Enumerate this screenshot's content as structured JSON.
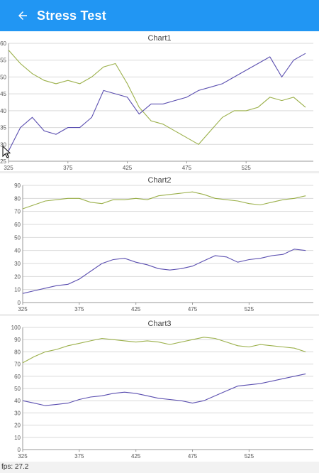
{
  "appbar": {
    "title": "Stress Test",
    "back_icon": "arrow-back-icon",
    "background": "#2196f3"
  },
  "status": {
    "fps_text": "fps: 27.2"
  },
  "colors": {
    "series_green": "#9bb04a",
    "series_purple": "#5b4fb0"
  },
  "chart_data": [
    {
      "type": "line",
      "title": "Chart1",
      "x_ticks": [
        325,
        375,
        425,
        475,
        525
      ],
      "y_ticks": [
        25,
        30,
        35,
        40,
        45,
        50,
        55,
        60
      ],
      "xlim": [
        325,
        578
      ],
      "ylim": [
        25,
        60
      ],
      "series": [
        {
          "color": "#9bb04a",
          "points": [
            [
              325,
              58
            ],
            [
              335,
              54
            ],
            [
              345,
              51
            ],
            [
              355,
              49
            ],
            [
              365,
              48
            ],
            [
              375,
              49
            ],
            [
              385,
              48
            ],
            [
              395,
              50
            ],
            [
              405,
              53
            ],
            [
              415,
              54
            ],
            [
              425,
              48
            ],
            [
              435,
              41
            ],
            [
              445,
              37
            ],
            [
              455,
              36
            ],
            [
              465,
              34
            ],
            [
              475,
              32
            ],
            [
              485,
              30
            ],
            [
              495,
              34
            ],
            [
              505,
              38
            ],
            [
              515,
              40
            ],
            [
              525,
              40
            ],
            [
              535,
              41
            ],
            [
              545,
              44
            ],
            [
              555,
              43
            ],
            [
              565,
              44
            ],
            [
              575,
              41
            ]
          ]
        },
        {
          "color": "#5b4fb0",
          "points": [
            [
              325,
              28
            ],
            [
              335,
              35
            ],
            [
              345,
              38
            ],
            [
              355,
              34
            ],
            [
              365,
              33
            ],
            [
              375,
              35
            ],
            [
              385,
              35
            ],
            [
              395,
              38
            ],
            [
              405,
              46
            ],
            [
              415,
              45
            ],
            [
              425,
              44
            ],
            [
              435,
              39
            ],
            [
              445,
              42
            ],
            [
              455,
              42
            ],
            [
              465,
              43
            ],
            [
              475,
              44
            ],
            [
              485,
              46
            ],
            [
              495,
              47
            ],
            [
              505,
              48
            ],
            [
              515,
              50
            ],
            [
              525,
              52
            ],
            [
              535,
              54
            ],
            [
              545,
              56
            ],
            [
              555,
              50
            ],
            [
              565,
              55
            ],
            [
              575,
              57
            ]
          ]
        }
      ]
    },
    {
      "type": "line",
      "title": "Chart2",
      "x_ticks": [
        325,
        375,
        425,
        475,
        525
      ],
      "y_ticks": [
        0,
        10,
        20,
        30,
        40,
        50,
        60,
        70,
        80,
        90
      ],
      "xlim": [
        325,
        578
      ],
      "ylim": [
        0,
        90
      ],
      "series": [
        {
          "color": "#9bb04a",
          "points": [
            [
              325,
              72
            ],
            [
              335,
              75
            ],
            [
              345,
              78
            ],
            [
              355,
              79
            ],
            [
              365,
              80
            ],
            [
              375,
              80
            ],
            [
              385,
              77
            ],
            [
              395,
              76
            ],
            [
              405,
              79
            ],
            [
              415,
              79
            ],
            [
              425,
              80
            ],
            [
              435,
              79
            ],
            [
              445,
              82
            ],
            [
              455,
              83
            ],
            [
              465,
              84
            ],
            [
              475,
              85
            ],
            [
              485,
              83
            ],
            [
              495,
              80
            ],
            [
              505,
              79
            ],
            [
              515,
              78
            ],
            [
              525,
              76
            ],
            [
              535,
              75
            ],
            [
              545,
              77
            ],
            [
              555,
              79
            ],
            [
              565,
              80
            ],
            [
              575,
              82
            ]
          ]
        },
        {
          "color": "#5b4fb0",
          "points": [
            [
              325,
              7
            ],
            [
              335,
              9
            ],
            [
              345,
              11
            ],
            [
              355,
              13
            ],
            [
              365,
              14
            ],
            [
              375,
              18
            ],
            [
              385,
              24
            ],
            [
              395,
              30
            ],
            [
              405,
              33
            ],
            [
              415,
              34
            ],
            [
              425,
              31
            ],
            [
              435,
              29
            ],
            [
              445,
              26
            ],
            [
              455,
              25
            ],
            [
              465,
              26
            ],
            [
              475,
              28
            ],
            [
              485,
              32
            ],
            [
              495,
              36
            ],
            [
              505,
              35
            ],
            [
              515,
              31
            ],
            [
              525,
              33
            ],
            [
              535,
              34
            ],
            [
              545,
              36
            ],
            [
              555,
              37
            ],
            [
              565,
              41
            ],
            [
              575,
              40
            ]
          ]
        }
      ]
    },
    {
      "type": "line",
      "title": "Chart3",
      "x_ticks": [
        325,
        375,
        425,
        475,
        525
      ],
      "y_ticks": [
        0,
        10,
        20,
        30,
        40,
        50,
        60,
        70,
        80,
        90,
        100
      ],
      "xlim": [
        325,
        578
      ],
      "ylim": [
        0,
        100
      ],
      "series": [
        {
          "color": "#9bb04a",
          "points": [
            [
              325,
              71
            ],
            [
              335,
              76
            ],
            [
              345,
              80
            ],
            [
              355,
              82
            ],
            [
              365,
              85
            ],
            [
              375,
              87
            ],
            [
              385,
              89
            ],
            [
              395,
              91
            ],
            [
              405,
              90
            ],
            [
              415,
              89
            ],
            [
              425,
              88
            ],
            [
              435,
              89
            ],
            [
              445,
              88
            ],
            [
              455,
              86
            ],
            [
              465,
              88
            ],
            [
              475,
              90
            ],
            [
              485,
              92
            ],
            [
              495,
              91
            ],
            [
              505,
              88
            ],
            [
              515,
              85
            ],
            [
              525,
              84
            ],
            [
              535,
              86
            ],
            [
              545,
              85
            ],
            [
              555,
              84
            ],
            [
              565,
              83
            ],
            [
              575,
              80
            ]
          ]
        },
        {
          "color": "#5b4fb0",
          "points": [
            [
              325,
              40
            ],
            [
              335,
              38
            ],
            [
              345,
              36
            ],
            [
              355,
              37
            ],
            [
              365,
              38
            ],
            [
              375,
              41
            ],
            [
              385,
              43
            ],
            [
              395,
              44
            ],
            [
              405,
              46
            ],
            [
              415,
              47
            ],
            [
              425,
              46
            ],
            [
              435,
              44
            ],
            [
              445,
              42
            ],
            [
              455,
              41
            ],
            [
              465,
              40
            ],
            [
              475,
              38
            ],
            [
              485,
              40
            ],
            [
              495,
              44
            ],
            [
              505,
              48
            ],
            [
              515,
              52
            ],
            [
              525,
              53
            ],
            [
              535,
              54
            ],
            [
              545,
              56
            ],
            [
              555,
              58
            ],
            [
              565,
              60
            ],
            [
              575,
              62
            ]
          ]
        }
      ]
    }
  ]
}
